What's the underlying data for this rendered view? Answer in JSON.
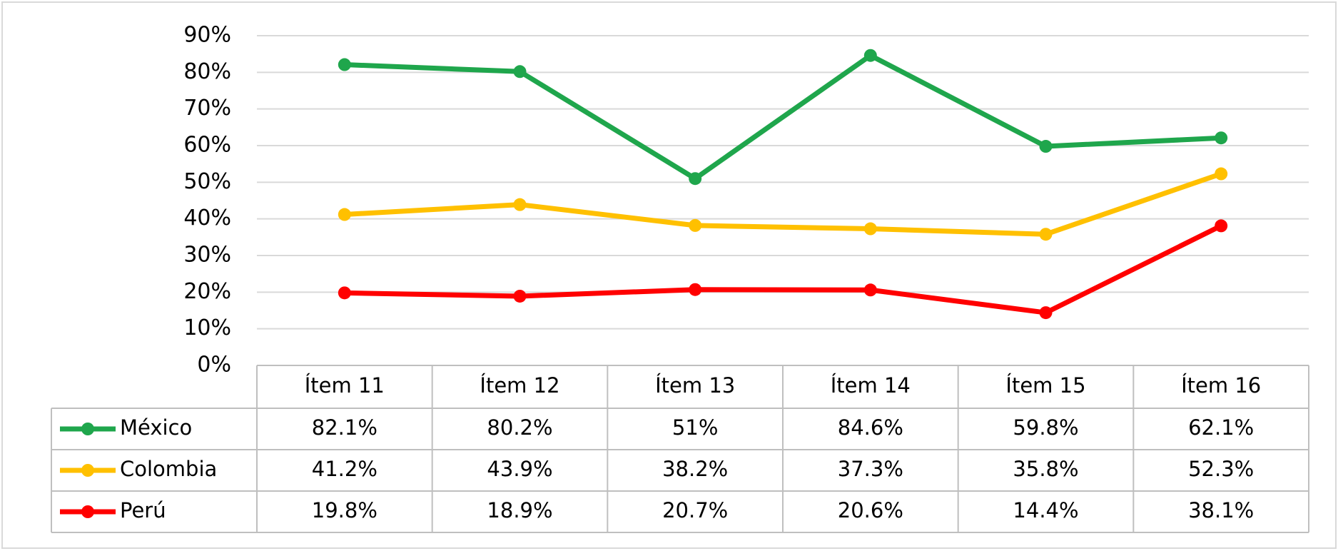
{
  "chart_data": {
    "type": "line",
    "categories": [
      "Ítem 11",
      "Ítem 12",
      "Ítem 13",
      "Ítem 14",
      "Ítem 15",
      "Ítem 16"
    ],
    "series": [
      {
        "name": "México",
        "color": "#1fa64c",
        "values": [
          82.1,
          80.2,
          51,
          84.6,
          59.8,
          62.1
        ],
        "value_labels": [
          "82.1%",
          "80.2%",
          "51%",
          "84.6%",
          "59.8%",
          "62.1%"
        ]
      },
      {
        "name": "Colombia",
        "color": "#ffc000",
        "values": [
          41.2,
          43.9,
          38.2,
          37.3,
          35.8,
          52.3
        ],
        "value_labels": [
          "41.2%",
          "43.9%",
          "38.2%",
          "37.3%",
          "35.8%",
          "52.3%"
        ]
      },
      {
        "name": "Perú",
        "color": "#ff0000",
        "values": [
          19.8,
          18.9,
          20.7,
          20.6,
          14.4,
          38.1
        ],
        "value_labels": [
          "19.8%",
          "18.9%",
          "20.7%",
          "20.6%",
          "14.4%",
          "38.1%"
        ]
      }
    ],
    "ylim": [
      0,
      90
    ],
    "yticks": [
      {
        "value": 0,
        "label": "0%"
      },
      {
        "value": 10,
        "label": "10%"
      },
      {
        "value": 20,
        "label": "20%"
      },
      {
        "value": 30,
        "label": "30%"
      },
      {
        "value": 40,
        "label": "40%"
      },
      {
        "value": 50,
        "label": "50%"
      },
      {
        "value": 60,
        "label": "60%"
      },
      {
        "value": 70,
        "label": "70%"
      },
      {
        "value": 80,
        "label": "80%"
      },
      {
        "value": 90,
        "label": "90%"
      }
    ],
    "grid": true
  }
}
